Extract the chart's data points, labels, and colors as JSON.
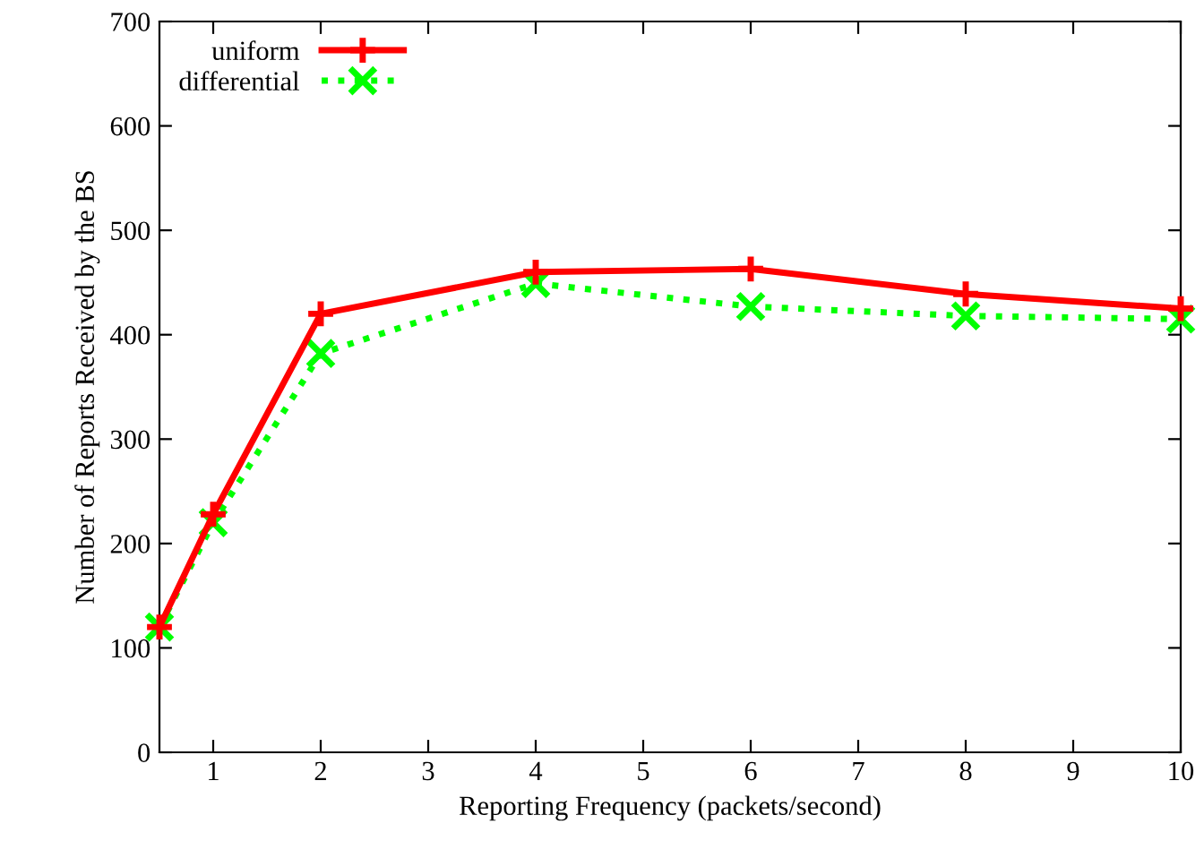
{
  "chart_data": {
    "type": "line",
    "xlabel": "Reporting Frequency (packets/second)",
    "ylabel": "Number of Reports Received by the BS",
    "x": [
      0.5,
      1,
      2,
      4,
      6,
      8,
      10
    ],
    "series": [
      {
        "name": "uniform",
        "color": "#ff0000",
        "marker": "cross",
        "line_style": "solid",
        "values": [
          120,
          228,
          420,
          460,
          463,
          439,
          425
        ]
      },
      {
        "name": "differential",
        "color": "#00ff00",
        "marker": "x",
        "line_style": "dotted",
        "values": [
          120,
          220,
          382,
          449,
          427,
          418,
          415
        ]
      }
    ],
    "xlim": [
      0.5,
      10
    ],
    "xticks": [
      1,
      2,
      3,
      4,
      5,
      6,
      7,
      8,
      9,
      10
    ],
    "ylim": [
      0,
      700
    ],
    "yticks": [
      0,
      100,
      200,
      300,
      400,
      500,
      600,
      700
    ],
    "grid": false,
    "legend": "top left"
  }
}
